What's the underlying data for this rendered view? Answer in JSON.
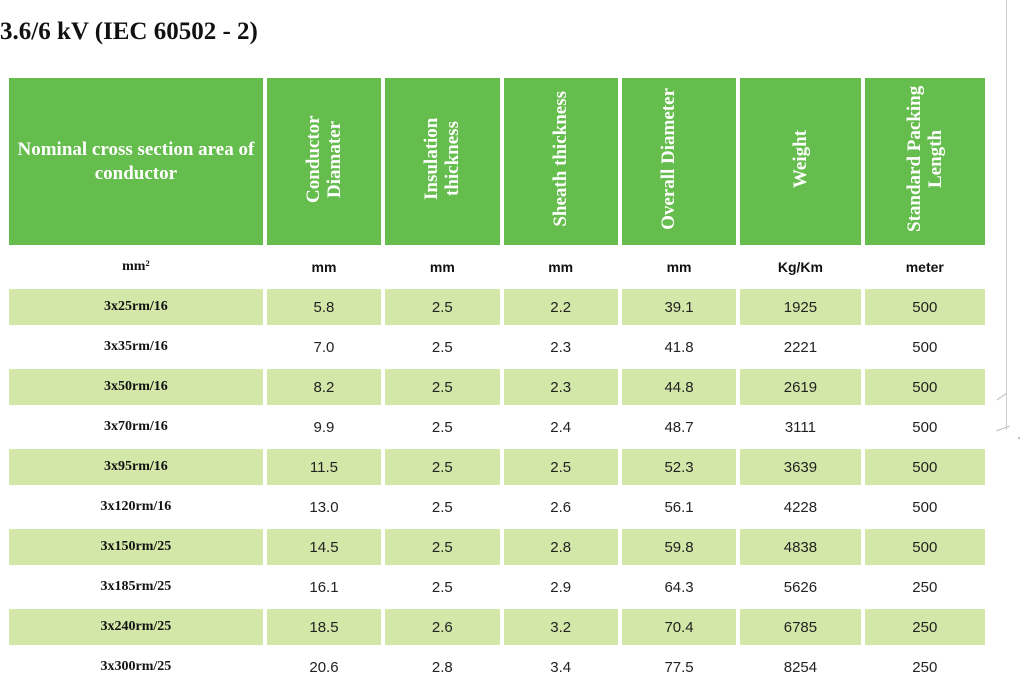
{
  "title": "3.6/6 kV (IEC 60502 - 2)",
  "colors": {
    "header_green": "#64bd4c",
    "row_shade": "#d3e8a8"
  },
  "headers": [
    "Nominal cross section area of conductor",
    "Conductor Diamater",
    "Insulation thickness",
    "Sheath thickness",
    "Overall Diameter",
    "Weight",
    "Standard Packing Length"
  ],
  "units": [
    "mm²",
    "mm",
    "mm",
    "mm",
    "mm",
    "Kg/Km",
    "meter"
  ],
  "rows": [
    [
      "3x25rm/16",
      "5.8",
      "2.5",
      "2.2",
      "39.1",
      "1925",
      "500"
    ],
    [
      "3x35rm/16",
      "7.0",
      "2.5",
      "2.3",
      "41.8",
      "2221",
      "500"
    ],
    [
      "3x50rm/16",
      "8.2",
      "2.5",
      "2.3",
      "44.8",
      "2619",
      "500"
    ],
    [
      "3x70rm/16",
      "9.9",
      "2.5",
      "2.4",
      "48.7",
      "3111",
      "500"
    ],
    [
      "3x95rm/16",
      "11.5",
      "2.5",
      "2.5",
      "52.3",
      "3639",
      "500"
    ],
    [
      "3x120rm/16",
      "13.0",
      "2.5",
      "2.6",
      "56.1",
      "4228",
      "500"
    ],
    [
      "3x150rm/25",
      "14.5",
      "2.5",
      "2.8",
      "59.8",
      "4838",
      "500"
    ],
    [
      "3x185rm/25",
      "16.1",
      "2.5",
      "2.9",
      "64.3",
      "5626",
      "250"
    ],
    [
      "3x240rm/25",
      "18.5",
      "2.6",
      "3.2",
      "70.4",
      "6785",
      "250"
    ],
    [
      "3x300rm/25",
      "20.6",
      "2.8",
      "3.4",
      "77.5",
      "8254",
      "250"
    ]
  ]
}
